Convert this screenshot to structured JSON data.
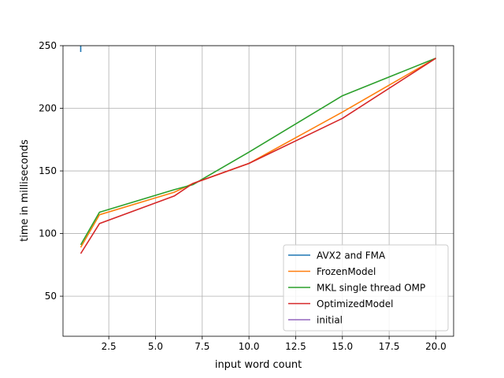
{
  "chart_data": {
    "type": "line",
    "title": "",
    "xlabel": "input word count",
    "ylabel": "time in milliseconds",
    "xlim": [
      0.05,
      20.95
    ],
    "ylim": [
      18,
      250
    ],
    "xticks": [
      2.5,
      5.0,
      7.5,
      10.0,
      12.5,
      15.0,
      17.5,
      20.0
    ],
    "xtick_labels": [
      "2.5",
      "5.0",
      "7.5",
      "10.0",
      "12.5",
      "15.0",
      "17.5",
      "20.0"
    ],
    "yticks": [
      50,
      100,
      150,
      200,
      250
    ],
    "ytick_labels": [
      "50",
      "100",
      "150",
      "200",
      "250"
    ],
    "grid": true,
    "legend_position": "bottom-right",
    "series": [
      {
        "name": "AVX2 and FMA",
        "color": "#1f77b4",
        "x": [
          1,
          1
        ],
        "y": [
          245,
          252
        ]
      },
      {
        "name": "FrozenModel",
        "color": "#ff7f0e",
        "x": [
          1,
          2,
          6,
          7,
          10,
          15,
          20
        ],
        "y": [
          89,
          115,
          133,
          140,
          156,
          197,
          240
        ]
      },
      {
        "name": "MKL single thread OMP",
        "color": "#2ca02c",
        "x": [
          1,
          2,
          6,
          7,
          10,
          15,
          20
        ],
        "y": [
          91,
          117,
          135,
          139,
          165,
          210,
          240
        ]
      },
      {
        "name": "OptimizedModel",
        "color": "#d62728",
        "x": [
          1,
          2,
          6,
          7,
          10,
          15,
          20
        ],
        "y": [
          84,
          108,
          130,
          140,
          156,
          192,
          240
        ]
      },
      {
        "name": "initial",
        "color": "#9467bd",
        "x": [],
        "y": []
      }
    ]
  }
}
